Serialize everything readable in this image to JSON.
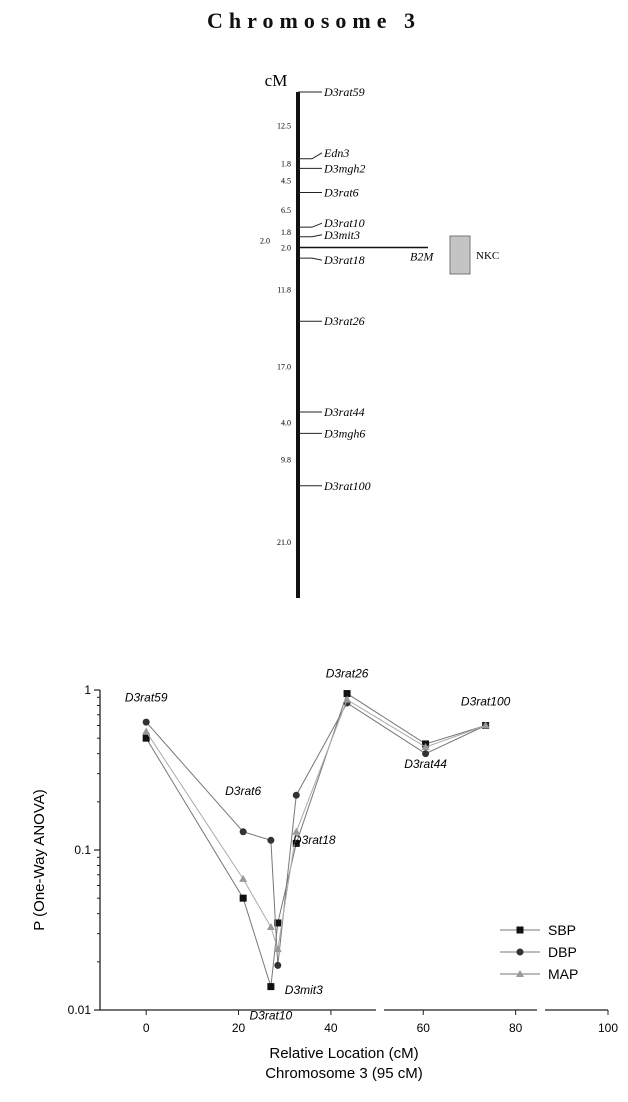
{
  "title": "Chromosome 3",
  "chart_data": [
    {
      "type": "genetic-map",
      "unit_label": "cM",
      "markers": [
        {
          "name": "D3rat59",
          "pos": 0
        },
        {
          "name": "Edn3",
          "pos": 12.5
        },
        {
          "name": "D3mgh2",
          "pos": 14.3
        },
        {
          "name": "D3rat6",
          "pos": 18.8
        },
        {
          "name": "D3rat10",
          "pos": 25.3
        },
        {
          "name": "D3mit3",
          "pos": 27.1
        },
        {
          "name": "D3rat18",
          "pos": 31.1
        },
        {
          "name": "D3rat26",
          "pos": 42.9
        },
        {
          "name": "D3rat44",
          "pos": 59.9
        },
        {
          "name": "D3mgh6",
          "pos": 63.9
        },
        {
          "name": "D3rat100",
          "pos": 73.7
        },
        {
          "name": "",
          "pos": 94.7
        }
      ],
      "intervals": [
        "12.5",
        "1.8",
        "4.5",
        "6.5",
        "1.8",
        "2.0",
        "11.8",
        "17.0",
        "4.0",
        "9.8",
        "21.0"
      ],
      "extra_interval": "2.0",
      "qtl_marker": "B2M",
      "qtl_label": "NKC"
    },
    {
      "type": "line",
      "xlabel": "Relative Location (cM)",
      "subtitle": "Chromosome 3 (95 cM)",
      "ylabel": "P (One-Way ANOVA)",
      "xlim": [
        -10,
        100
      ],
      "ylim": [
        0.01,
        1
      ],
      "yscale": "log",
      "x_ticks": [
        0,
        20,
        40,
        60,
        80,
        100
      ],
      "y_ticks": [
        "0.01",
        "0.1",
        "1"
      ],
      "legend_position": "bottom-right",
      "series": [
        {
          "name": "SBP",
          "marker": "square",
          "x": [
            0,
            21,
            27,
            28.5,
            32.5,
            43.5,
            60.5,
            73.5
          ],
          "values": [
            0.5,
            0.05,
            0.014,
            0.035,
            0.11,
            0.95,
            0.46,
            0.6
          ]
        },
        {
          "name": "DBP",
          "marker": "circle",
          "x": [
            0,
            21,
            27,
            28.5,
            32.5,
            43.5,
            60.5,
            73.5
          ],
          "values": [
            0.63,
            0.13,
            0.115,
            0.019,
            0.22,
            0.83,
            0.4,
            0.6
          ]
        },
        {
          "name": "MAP",
          "marker": "triangle",
          "x": [
            0,
            21,
            27,
            28.5,
            32.5,
            43.5,
            60.5,
            73.5
          ],
          "values": [
            0.55,
            0.066,
            0.033,
            0.024,
            0.13,
            0.87,
            0.44,
            0.6
          ]
        }
      ],
      "annotations": [
        "D3rat59",
        "D3rat6",
        "D3rat10",
        "D3mit3",
        "D3rat18",
        "D3rat26",
        "D3rat44",
        "D3rat100"
      ]
    }
  ]
}
